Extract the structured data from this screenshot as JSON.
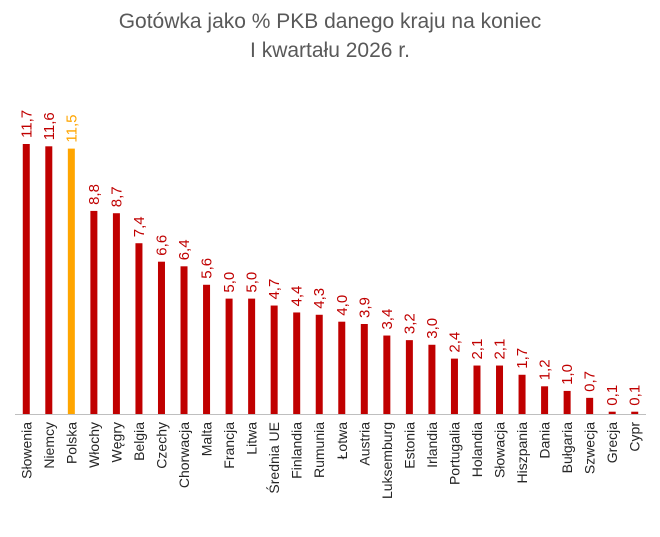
{
  "chart_data": {
    "type": "bar",
    "title_line1": "Gotówka jako % PKB danego kraju na koniec",
    "title_line2": "I kwartału 2026 r.",
    "categories": [
      "Słowenia",
      "Niemcy",
      "Polska",
      "Włochy",
      "Węgry",
      "Belgia",
      "Czechy",
      "Chorwacja",
      "Malta",
      "Francja",
      "Litwa",
      "Średnia UE",
      "Finlandia",
      "Rumunia",
      "Łotwa",
      "Austria",
      "Luksemburg",
      "Estonia",
      "Irlandia",
      "Portugalia",
      "Holandia",
      "Słowacja",
      "Hiszpania",
      "Dania",
      "Bułgaria",
      "Szwecja",
      "Grecja",
      "Cypr"
    ],
    "values": [
      11.7,
      11.6,
      11.5,
      8.8,
      8.7,
      7.4,
      6.6,
      6.4,
      5.6,
      5.0,
      5.0,
      4.7,
      4.4,
      4.3,
      4.0,
      3.9,
      3.4,
      3.2,
      3.0,
      2.4,
      2.1,
      2.1,
      1.7,
      1.2,
      1.0,
      0.7,
      0.1,
      0.1
    ],
    "value_labels": [
      "11,7",
      "11,6",
      "11,5",
      "8,8",
      "8,7",
      "7,4",
      "6,6",
      "6,4",
      "5,6",
      "5,0",
      "5,0",
      "4,7",
      "4,4",
      "4,3",
      "4,0",
      "3,9",
      "3,4",
      "3,2",
      "3,0",
      "2,4",
      "2,1",
      "2,1",
      "1,7",
      "1,2",
      "1,0",
      "0,7",
      "0,1",
      "0,1"
    ],
    "highlight_category": "Polska",
    "colors": {
      "bar": "#C00000",
      "highlight": "#FFA500",
      "title": "#595959",
      "axis": "#BFBFBF",
      "label_dark": "#262626"
    },
    "ylim": [
      0,
      11.7
    ],
    "grid": false,
    "legend": "none"
  }
}
